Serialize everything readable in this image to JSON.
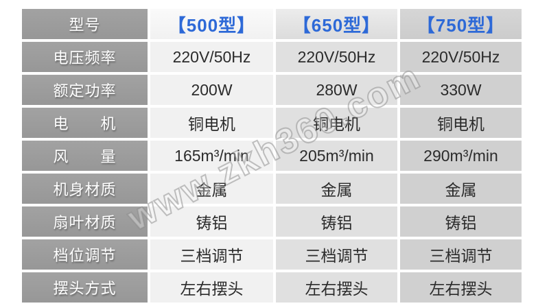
{
  "table": {
    "header": {
      "label": "型号",
      "models": [
        "【500型】",
        "【650型】",
        "【750型】"
      ]
    },
    "rows": [
      {
        "label": "电压频率",
        "values": [
          "220V/50Hz",
          "220V/50Hz",
          "220V/50Hz"
        ]
      },
      {
        "label": "额定功率",
        "values": [
          "200W",
          "280W",
          "330W"
        ]
      },
      {
        "label": "电　　机",
        "values": [
          "铜电机",
          "铜电机",
          "铜电机"
        ]
      },
      {
        "label": "风　　量",
        "values": [
          "165m³/min",
          "205m³/min",
          "290m³/min"
        ]
      },
      {
        "label": "机身材质",
        "values": [
          "金属",
          "金属",
          "金属"
        ]
      },
      {
        "label": "扇叶材质",
        "values": [
          "铸铝",
          "铸铝",
          "铸铝"
        ]
      },
      {
        "label": "档位调节",
        "values": [
          "三档调节",
          "三档调节",
          "三档调节"
        ]
      },
      {
        "label": "摆头方式",
        "values": [
          "左右摆头",
          "左右摆头",
          "左右摆头"
        ]
      }
    ]
  },
  "watermark": {
    "text": "www.zkh360.com"
  },
  "colors": {
    "accent_blue": "#2d69d7",
    "label_gray": "#9b9b9b",
    "column2_bg": "#f1f1f1",
    "column3_bg": "#e0e0e0",
    "column4_bg": "#d0d0d0",
    "value_text": "#2b2b2b"
  }
}
